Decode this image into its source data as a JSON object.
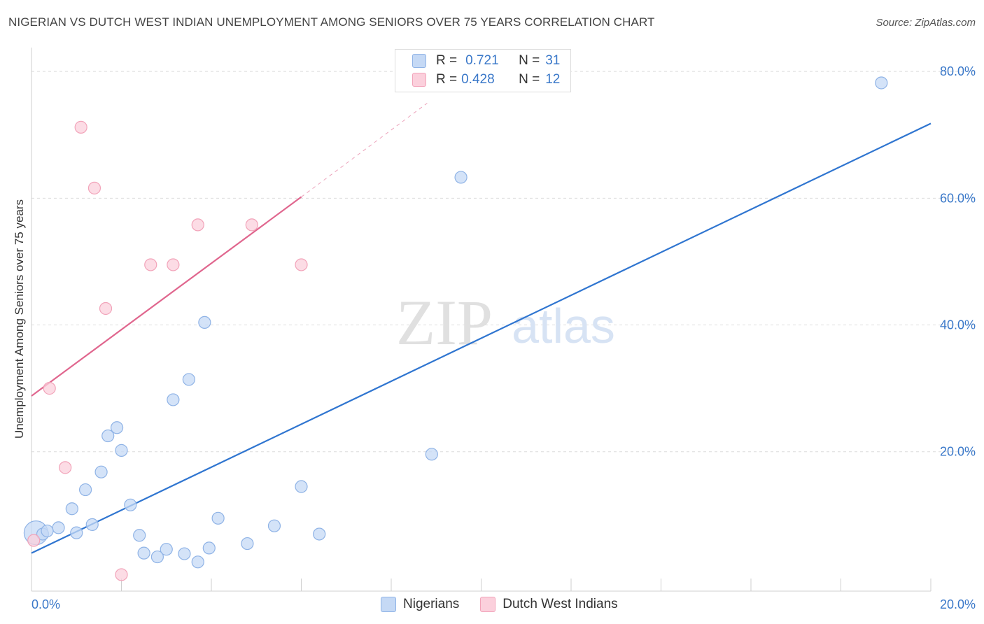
{
  "title": "NIGERIAN VS DUTCH WEST INDIAN UNEMPLOYMENT AMONG SENIORS OVER 75 YEARS CORRELATION CHART",
  "source": "Source: ZipAtlas.com",
  "watermark": {
    "zip": "ZIP",
    "atlas": "atlas"
  },
  "legend_top": {
    "rows": [
      {
        "r_label": "R =",
        "r_value": "0.721",
        "n_label": "N =",
        "n_value": "31"
      },
      {
        "r_label": "R =",
        "r_value": "0.428",
        "n_label": "N =",
        "n_value": "12"
      }
    ]
  },
  "colors": {
    "nigerians_fill": "#c5d9f5",
    "nigerians_stroke": "#8fb3e6",
    "nigerians_line": "#2f75d0",
    "dutch_fill": "#fbd0dc",
    "dutch_stroke": "#f2a3b9",
    "dutch_line": "#e0668e",
    "tick_label": "#3a78c9",
    "grid": "#dcdcdc"
  },
  "chart_data": {
    "type": "scatter",
    "title": "NIGERIAN VS DUTCH WEST INDIAN UNEMPLOYMENT AMONG SENIORS OVER 75 YEARS CORRELATION CHART",
    "xlabel": "",
    "ylabel": "Unemployment Among Seniors over 75 years",
    "xlim": [
      0,
      20
    ],
    "ylim": [
      -2,
      83
    ],
    "x_tick_labels": [
      "0.0%",
      "20.0%"
    ],
    "y_ticks": [
      20,
      40,
      60,
      80
    ],
    "y_tick_labels": [
      "20.0%",
      "40.0%",
      "60.0%",
      "80.0%"
    ],
    "legend": [
      "Nigerians",
      "Dutch West Indians"
    ],
    "series": [
      {
        "name": "Nigerians",
        "r": 0.721,
        "n": 31,
        "points": [
          {
            "x": 0.1,
            "y": 7.2,
            "big": true
          },
          {
            "x": 0.25,
            "y": 7.0
          },
          {
            "x": 0.6,
            "y": 8.0
          },
          {
            "x": 0.9,
            "y": 11.0
          },
          {
            "x": 1.0,
            "y": 7.2
          },
          {
            "x": 1.2,
            "y": 14.0
          },
          {
            "x": 1.35,
            "y": 8.5
          },
          {
            "x": 1.55,
            "y": 16.8
          },
          {
            "x": 1.7,
            "y": 22.5
          },
          {
            "x": 1.9,
            "y": 23.8
          },
          {
            "x": 2.0,
            "y": 20.2
          },
          {
            "x": 2.2,
            "y": 11.6
          },
          {
            "x": 2.4,
            "y": 6.8
          },
          {
            "x": 2.5,
            "y": 4.0
          },
          {
            "x": 2.8,
            "y": 3.4
          },
          {
            "x": 3.0,
            "y": 4.6
          },
          {
            "x": 3.15,
            "y": 28.2
          },
          {
            "x": 3.4,
            "y": 3.9
          },
          {
            "x": 3.5,
            "y": 31.4
          },
          {
            "x": 3.7,
            "y": 2.6
          },
          {
            "x": 3.85,
            "y": 40.4
          },
          {
            "x": 3.95,
            "y": 4.8
          },
          {
            "x": 4.15,
            "y": 9.5
          },
          {
            "x": 4.8,
            "y": 5.5
          },
          {
            "x": 5.4,
            "y": 8.3
          },
          {
            "x": 6.0,
            "y": 14.5
          },
          {
            "x": 6.4,
            "y": 7.0
          },
          {
            "x": 8.9,
            "y": 19.6
          },
          {
            "x": 9.55,
            "y": 63.3
          },
          {
            "x": 18.9,
            "y": 78.2
          },
          {
            "x": 0.35,
            "y": 7.5
          }
        ],
        "trend": {
          "x": [
            0,
            20
          ],
          "y": [
            4.0,
            71.8
          ]
        }
      },
      {
        "name": "Dutch West Indians",
        "r": 0.428,
        "n": 12,
        "points": [
          {
            "x": 0.05,
            "y": 6.0
          },
          {
            "x": 0.4,
            "y": 30.0
          },
          {
            "x": 0.75,
            "y": 17.5
          },
          {
            "x": 1.1,
            "y": 71.2
          },
          {
            "x": 1.4,
            "y": 61.6
          },
          {
            "x": 1.65,
            "y": 42.6
          },
          {
            "x": 2.0,
            "y": 0.6
          },
          {
            "x": 2.65,
            "y": 49.5
          },
          {
            "x": 3.15,
            "y": 49.5
          },
          {
            "x": 3.7,
            "y": 55.8
          },
          {
            "x": 4.9,
            "y": 55.8
          },
          {
            "x": 6.0,
            "y": 49.5
          }
        ],
        "trend": {
          "x": [
            0,
            6.0
          ],
          "y": [
            28.8,
            60.2
          ]
        },
        "trend_extension": {
          "x": [
            6.0,
            8.8
          ],
          "y": [
            60.2,
            75.0
          ]
        }
      }
    ]
  }
}
